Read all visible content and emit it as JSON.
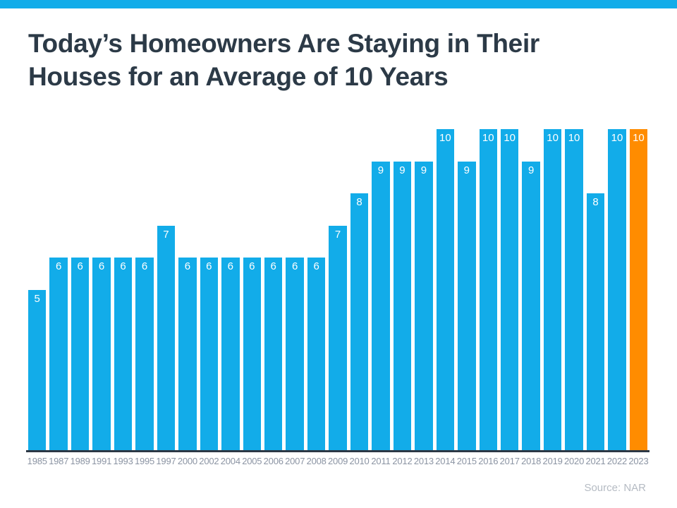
{
  "page": {
    "title_line1": "Today’s Homeowners Are Staying in Their",
    "title_line2": "Houses for an Average of 10 Years",
    "source_label": "Source: NAR"
  },
  "colors": {
    "accent_blue": "#12ACE9",
    "highlight_orange": "#FF8C00",
    "title_navy": "#2C3A47",
    "axis_dark": "#2C3845",
    "year_label_gray": "#8B94A3",
    "source_gray": "#B5BBC3",
    "bar_value_label": "#FFFFFF"
  },
  "chart_data": {
    "type": "bar",
    "title": "Today’s Homeowners Are Staying in Their Houses for an Average of 10 Years",
    "categories": [
      "1985",
      "1987",
      "1989",
      "1991",
      "1993",
      "1995",
      "1997",
      "2000",
      "2002",
      "2004",
      "2005",
      "2006",
      "2007",
      "2008",
      "2009",
      "2010",
      "2011",
      "2012",
      "2013",
      "2014",
      "2015",
      "2016",
      "2017",
      "2018",
      "2019",
      "2020",
      "2021",
      "2022",
      "2023"
    ],
    "values": [
      5,
      6,
      6,
      6,
      6,
      6,
      7,
      6,
      6,
      6,
      6,
      6,
      6,
      6,
      7,
      8,
      9,
      9,
      9,
      10,
      9,
      10,
      10,
      9,
      10,
      10,
      8,
      10,
      10
    ],
    "ylim": [
      0,
      10
    ],
    "highlight_index": 28,
    "bar_color": "#12ACE9",
    "highlight_color": "#FF8C00",
    "data_labels": true,
    "grid": false,
    "legend": false,
    "xlabel": "",
    "ylabel": "",
    "source": "Source: NAR"
  }
}
